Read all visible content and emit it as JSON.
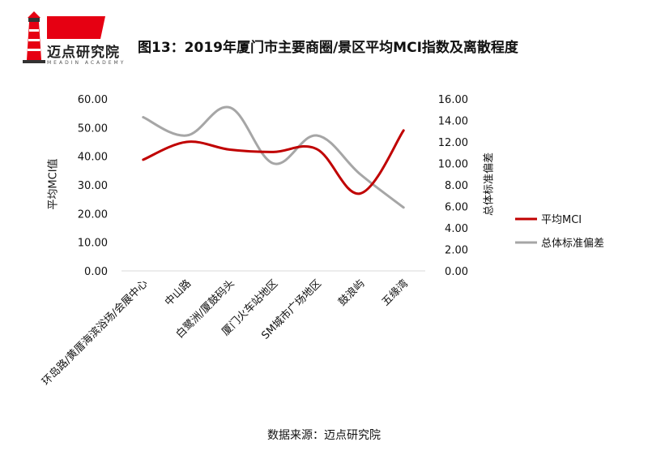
{
  "logo": {
    "text": "迈点研究院",
    "subtext": "MEADIN ACADEMY"
  },
  "title": "图13：2019年厦门市主要商圈/景区平均MCI指数及离散程度",
  "source": "数据来源：迈点研究院",
  "colors": {
    "series_mci": "#C00000",
    "series_std": "#A6A6A6",
    "logo_red": "#E60012"
  },
  "chart_data": {
    "type": "line",
    "categories": [
      "环岛路/黄厝海滨浴场/会展中心",
      "中山路",
      "白鹭洲/厦鼓码头",
      "厦门火车站地区",
      "SM城市广场地区",
      "鼓浪屿",
      "五缘湾"
    ],
    "ylabel": "平均MCI值",
    "y2label": "总体标准偏差",
    "ylim": [
      0,
      60
    ],
    "y2lim": [
      0,
      16
    ],
    "yticks": [
      "0.00",
      "10.00",
      "20.00",
      "30.00",
      "40.00",
      "50.00",
      "60.00"
    ],
    "y2ticks": [
      "0.00",
      "2.00",
      "4.00",
      "6.00",
      "8.00",
      "10.00",
      "12.00",
      "14.00",
      "16.00"
    ],
    "grid": false,
    "legend_position": "right",
    "series": [
      {
        "name": "平均MCI",
        "axis": "left",
        "values": [
          38.8,
          45.0,
          42.3,
          41.5,
          42.5,
          27.0,
          49.0
        ]
      },
      {
        "name": "总体标准偏差",
        "axis": "right",
        "values": [
          14.3,
          12.6,
          15.2,
          10.0,
          12.6,
          9.0,
          5.9
        ]
      }
    ]
  }
}
